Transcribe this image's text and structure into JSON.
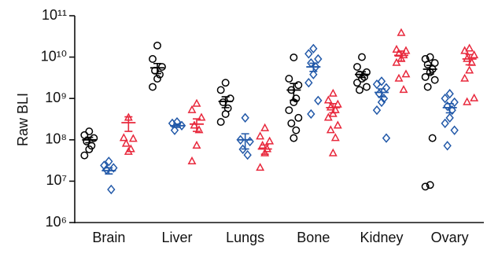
{
  "chart_data": {
    "type": "dot",
    "y_label": "Raw BLI",
    "categories": [
      "Brain",
      "Liver",
      "Lungs",
      "Bone",
      "Kidney",
      "Ovary"
    ],
    "log_scale": true,
    "ylim": [
      1000000,
      100000000000
    ],
    "yticks": [
      {
        "value": 1000000,
        "label": "10⁶"
      },
      {
        "value": 10000000,
        "label": "10⁷"
      },
      {
        "value": 100000000,
        "label": "10⁸"
      },
      {
        "value": 1000000000,
        "label": "10⁹"
      },
      {
        "value": 10000000000,
        "label": "10¹⁰"
      },
      {
        "value": 100000000000,
        "label": "10¹¹"
      }
    ],
    "series": [
      {
        "color": "#000000",
        "marker": "circle",
        "values": [
          [
            160000000,
            130000000,
            110000000,
            91000000,
            72000000,
            59000000,
            42000000
          ],
          [
            19000000000,
            9000000000,
            5800000000,
            4700000000,
            3800000000,
            3000000000,
            1900000000
          ],
          [
            2400000000,
            1600000000,
            1000000000,
            810000000,
            580000000,
            420000000,
            270000000
          ],
          [
            9800000000,
            3000000000,
            2100000000,
            1600000000,
            1000000000,
            810000000,
            520000000,
            340000000,
            250000000,
            170000000,
            110000000
          ],
          [
            10000000000,
            5800000000,
            4300000000,
            3800000000,
            3300000000,
            3000000000,
            2400000000,
            1900000000,
            1600000000
          ],
          [
            10000000000,
            9000000000,
            7200000000,
            6600000000,
            5100000000,
            4300000000,
            3300000000,
            2800000000,
            1900000000,
            110000000,
            8100000,
            7400000
          ]
        ],
        "means": [
          100000000,
          5500000000,
          850000000,
          1600000000,
          3800000000,
          5100000000
        ],
        "sems": [
          15000000,
          1500000000,
          250000000,
          700000000,
          600000000,
          1200000000
        ]
      },
      {
        "color": "#2158a8",
        "marker": "diamond",
        "values": [
          [
            30000000,
            24000000,
            21000000,
            19000000,
            6300000
          ],
          [
            270000000,
            250000000,
            220000000,
            170000000
          ],
          [
            340000000,
            100000000,
            91000000,
            59000000,
            43000000
          ],
          [
            16000000000,
            12000000000,
            9000000000,
            7200000000,
            5800000000,
            3800000000,
            2400000000,
            890000000,
            420000000
          ],
          [
            2600000000,
            2200000000,
            1800000000,
            1300000000,
            1000000000,
            810000000,
            520000000,
            110000000
          ],
          [
            1300000000,
            1000000000,
            810000000,
            650000000,
            520000000,
            340000000,
            250000000,
            170000000,
            72000000
          ]
        ],
        "means": [
          18000000,
          220000000,
          100000000,
          5800000000,
          1400000000,
          600000000
        ],
        "sems": [
          3000000,
          20000000,
          40000000,
          1300000000,
          300000000,
          150000000
        ]
      },
      {
        "color": "#e8283c",
        "marker": "triangle",
        "values": [
          [
            340000000,
            110000000,
            105000000,
            80000000,
            59000000,
            51000000
          ],
          [
            740000000,
            520000000,
            340000000,
            220000000,
            170000000,
            72000000,
            30000000
          ],
          [
            190000000,
            120000000,
            91000000,
            72000000,
            59000000,
            47000000,
            21000000
          ],
          [
            1300000000,
            890000000,
            710000000,
            600000000,
            520000000,
            420000000,
            340000000,
            220000000,
            170000000,
            110000000,
            47000000
          ],
          [
            38000000000,
            15000000000,
            14000000000,
            12000000000,
            11000000000,
            9000000000,
            7200000000,
            3800000000,
            3000000000,
            1600000000
          ],
          [
            16000000000,
            14000000000,
            11000000000,
            9000000000,
            7200000000,
            4700000000,
            3000000000,
            1000000000,
            810000000
          ]
        ],
        "means": [
          260000000,
          240000000,
          60000000,
          600000000,
          11000000000,
          9000000000
        ],
        "sems": [
          100000000,
          80000000,
          15000000,
          150000000,
          3000000000,
          2500000000
        ]
      }
    ]
  }
}
